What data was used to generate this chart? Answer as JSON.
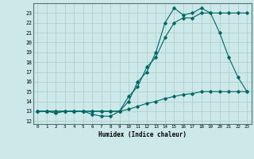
{
  "xlabel": "Humidex (Indice chaleur)",
  "bg_color": "#cce8e8",
  "line_color": "#006666",
  "grid_color": "#aacccc",
  "xlim": [
    -0.5,
    23.5
  ],
  "ylim": [
    11.7,
    24.0
  ],
  "yticks": [
    12,
    13,
    14,
    15,
    16,
    17,
    18,
    19,
    20,
    21,
    22,
    23
  ],
  "xticks": [
    0,
    1,
    2,
    3,
    4,
    5,
    6,
    7,
    8,
    9,
    10,
    11,
    12,
    13,
    14,
    15,
    16,
    17,
    18,
    19,
    20,
    21,
    22,
    23
  ],
  "line1_x": [
    0,
    1,
    2,
    3,
    4,
    5,
    6,
    7,
    8,
    9,
    10,
    11,
    12,
    13,
    14,
    15,
    16,
    17,
    18,
    19,
    20,
    21,
    22,
    23
  ],
  "line1_y": [
    13,
    13,
    13,
    13,
    13,
    13,
    12.7,
    12.5,
    12.5,
    13,
    13.2,
    13.5,
    13.8,
    14.0,
    14.3,
    14.5,
    14.7,
    14.8,
    15.0,
    15.0,
    15.0,
    15.0,
    15.0,
    15.0
  ],
  "line2_x": [
    0,
    1,
    2,
    3,
    4,
    5,
    6,
    7,
    8,
    9,
    10,
    11,
    12,
    13,
    14,
    15,
    16,
    17,
    18,
    19,
    20,
    21,
    22,
    23
  ],
  "line2_y": [
    13,
    13,
    12.8,
    13,
    13,
    13,
    13,
    13,
    13,
    13,
    14.5,
    15.5,
    17.5,
    18.5,
    20.5,
    22,
    22.5,
    22.5,
    23,
    23,
    21,
    18.5,
    16.5,
    15
  ],
  "line3_x": [
    0,
    1,
    2,
    3,
    4,
    5,
    6,
    7,
    8,
    9,
    10,
    11,
    12,
    13,
    14,
    15,
    16,
    17,
    18,
    19,
    20,
    21,
    22,
    23
  ],
  "line3_y": [
    13,
    13,
    13,
    13,
    13,
    13,
    13,
    13,
    13,
    13,
    14,
    16,
    17,
    19,
    22,
    23.5,
    22.8,
    23,
    23.5,
    23,
    23,
    23,
    23,
    23
  ]
}
